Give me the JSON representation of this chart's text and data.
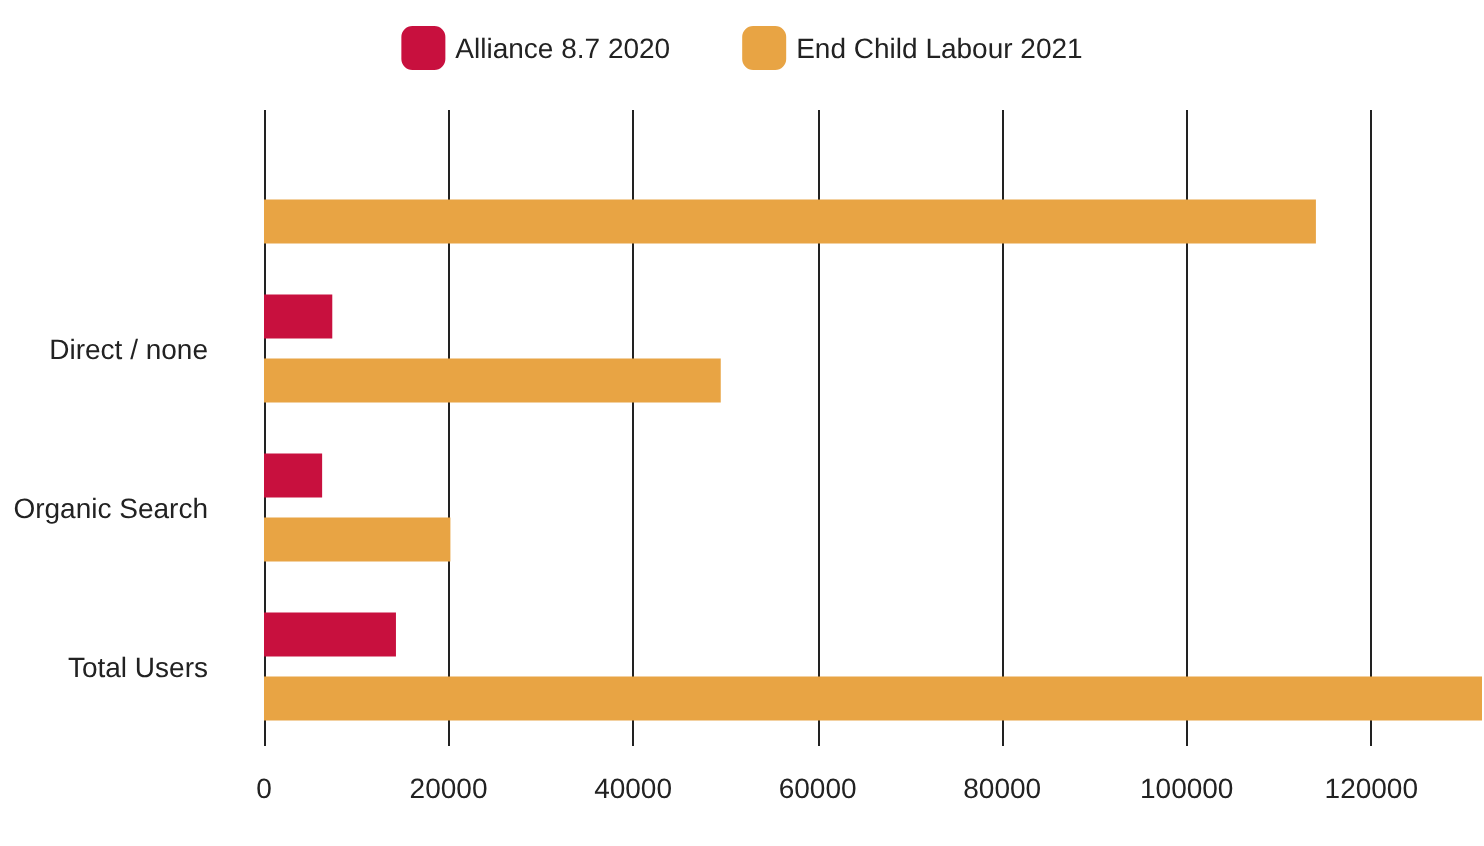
{
  "chart_data": {
    "type": "bar",
    "orientation": "horizontal",
    "categories": [
      null,
      "Direct / none",
      "Organic Search",
      "Total Users"
    ],
    "series": [
      {
        "name": "Alliance 8.7 2020",
        "color": "#c8103e",
        "values": [
          null,
          7400,
          6300,
          14300
        ]
      },
      {
        "name": "End Child Labour 2021",
        "color": "#e8a444",
        "values": [
          114000,
          49500,
          20200,
          132000
        ]
      }
    ],
    "xlim": [
      0,
      132000
    ],
    "xticks": [
      0,
      20000,
      40000,
      60000,
      80000,
      100000,
      120000
    ],
    "grid": "x",
    "legend": "top"
  }
}
